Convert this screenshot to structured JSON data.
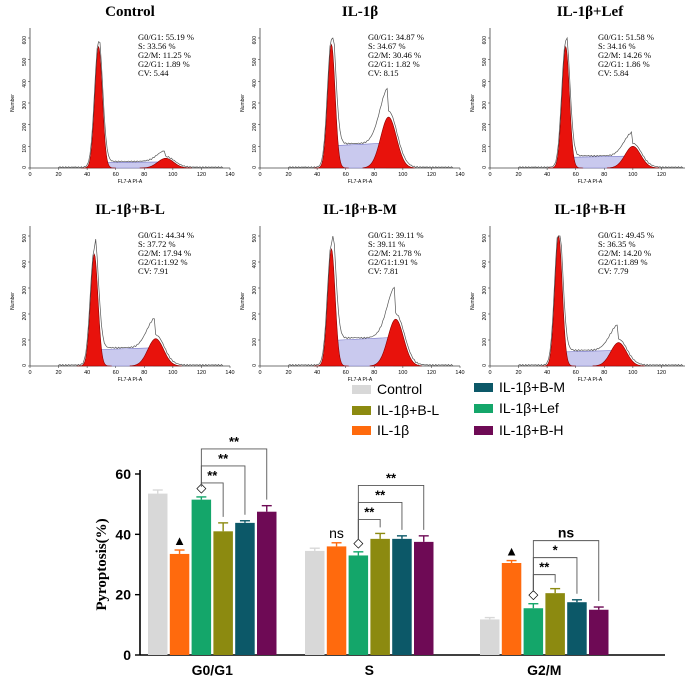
{
  "colors": {
    "peak_red": "#e8120c",
    "s_phase_fill": "#c9c9ee",
    "outline": "#555555",
    "bar_colors": [
      "#d8d8d8",
      "#ff6a0d",
      "#14a66a",
      "#8c8a10",
      "#0c5868",
      "#6e0a55"
    ]
  },
  "chart_data": [
    {
      "type": "histogram",
      "panel": "flow-cytometry-panels",
      "x_ticks": [
        "0",
        "20",
        "40",
        "60",
        "80",
        "100",
        "120",
        "140"
      ],
      "xlabel": "FL7-A PI-A",
      "ylabel": "Number",
      "panels": [
        {
          "title": "Control",
          "stats": [
            "G0/G1: 55.19 %",
            "S: 33.56 %",
            "G2/M: 11.25 %",
            "G2/G1: 1.89 %",
            "CV: 5.44"
          ],
          "y_ticks": [
            "0",
            "100",
            "200",
            "300",
            "400",
            "500",
            "600"
          ],
          "y_max": 600,
          "g1_peak": {
            "x": 48,
            "y": 560
          },
          "g2_peak": {
            "x": 95,
            "y": 45
          },
          "s_level": 28
        },
        {
          "title": "IL-1β",
          "stats": [
            "G0/G1: 34.87 %",
            "S: 34.67 %",
            "G2/M: 30.46 %",
            "G2/G1: 1.82 %",
            "CV: 8.15"
          ],
          "y_ticks": [
            "0",
            "100",
            "200",
            "300",
            "400",
            "500",
            "600"
          ],
          "y_max": 600,
          "g1_peak": {
            "x": 50,
            "y": 570
          },
          "g2_peak": {
            "x": 90,
            "y": 235
          },
          "s_level": 115
        },
        {
          "title": "IL-1β+Lef",
          "stats": [
            "G0/G1: 51.58 %",
            "S: 34.16 %",
            "G2/M: 14.26 %",
            "G2/G1: 1.86 %",
            "CV: 5.84"
          ],
          "y_ticks": [
            "0",
            "100",
            "200",
            "300",
            "400",
            "500",
            "600"
          ],
          "y_max": 600,
          "g1_peak": {
            "x": 53,
            "y": 560
          },
          "g2_peak": {
            "x": 100,
            "y": 100
          },
          "s_level": 55
        },
        {
          "title": "IL-1β+B-L",
          "stats": [
            "G0/G1: 44.34 %",
            "S: 37.72 %",
            "G2/M: 17.94 %",
            "G2/G1:1.92 %",
            "CV: 7.91"
          ],
          "y_ticks": [
            "0",
            "100",
            "200",
            "300",
            "400",
            "500"
          ],
          "y_max": 500,
          "g1_peak": {
            "x": 45,
            "y": 430
          },
          "g2_peak": {
            "x": 88,
            "y": 105
          },
          "s_level": 70
        },
        {
          "title": "IL-1β+B-M",
          "stats": [
            "G0/G1: 39.11 %",
            "S: 39.11 %",
            "G2/M: 21.78 %",
            "G2/G1:1.91 %",
            "CV: 7.81"
          ],
          "y_ticks": [
            "0",
            "100",
            "200",
            "300",
            "400",
            "500"
          ],
          "y_max": 500,
          "g1_peak": {
            "x": 50,
            "y": 450
          },
          "g2_peak": {
            "x": 95,
            "y": 180
          },
          "s_level": 110
        },
        {
          "title": "IL-1β+B-H",
          "stats": [
            "G0/G1: 49.45 %",
            "S: 36.35 %",
            "G2/M: 14.20 %",
            "G2/G1:1.89 %",
            "CV:  7.79"
          ],
          "y_ticks": [
            "0",
            "100",
            "200",
            "300",
            "400",
            "500"
          ],
          "y_max": 500,
          "g1_peak": {
            "x": 48,
            "y": 500
          },
          "g2_peak": {
            "x": 90,
            "y": 90
          },
          "s_level": 60
        }
      ]
    },
    {
      "type": "bar",
      "panel": "pyroptosis-bar-chart",
      "ylabel": "Pyroptosis(%)",
      "ylim": [
        0,
        60
      ],
      "y_ticks": [
        "0",
        "20",
        "40",
        "60"
      ],
      "categories": [
        "G0/G1",
        "S",
        "G2/M"
      ],
      "series": [
        {
          "name": "Control",
          "values": [
            53.5,
            34.5,
            11.8
          ],
          "errors": [
            1.2,
            0.9,
            0.6
          ]
        },
        {
          "name": "IL-1β",
          "values": [
            33.5,
            36.0,
            30.5
          ],
          "errors": [
            1.3,
            1.2,
            0.8
          ]
        },
        {
          "name": "IL-1β+Lef",
          "values": [
            51.5,
            33.0,
            15.5
          ],
          "errors": [
            0.9,
            1.2,
            1.5
          ]
        },
        {
          "name": "IL-1β+B-L",
          "values": [
            41.0,
            38.5,
            20.5
          ],
          "errors": [
            2.8,
            1.8,
            1.5
          ]
        },
        {
          "name": "IL-1β+B-M",
          "values": [
            43.8,
            38.5,
            17.5
          ],
          "errors": [
            0.7,
            1.0,
            0.8
          ]
        },
        {
          "name": "IL-1β+B-H",
          "values": [
            47.5,
            37.5,
            15.0
          ],
          "errors": [
            2.0,
            2.0,
            0.9
          ]
        }
      ],
      "legend": {
        "placement": "top-right",
        "order": [
          0,
          3,
          1,
          4,
          2,
          5
        ]
      },
      "annotations": {
        "triangle": "▲",
        "diamond": "◇",
        "brackets": [
          {
            "label": "**",
            "group": 0,
            "from": 2,
            "to": 3
          },
          {
            "label": "**",
            "group": 0,
            "from": 2,
            "to": 4
          },
          {
            "label": "**",
            "group": 0,
            "from": 2,
            "to": 5
          },
          {
            "label": "**",
            "group": 1,
            "from": 2,
            "to": 3
          },
          {
            "label": "**",
            "group": 1,
            "from": 2,
            "to": 4
          },
          {
            "label": "**",
            "group": 1,
            "from": 2,
            "to": 5
          },
          {
            "label": "**",
            "group": 2,
            "from": 2,
            "to": 3
          },
          {
            "label": "*",
            "group": 2,
            "from": 2,
            "to": 4
          },
          {
            "label": "ns",
            "group": 2,
            "from": 2,
            "to": 5
          }
        ],
        "marks": [
          {
            "symbol": "▲",
            "group": 0,
            "series": 1
          },
          {
            "symbol": "◇",
            "group": 0,
            "series": 2
          },
          {
            "symbol": "ns",
            "group": 1,
            "series": 1
          },
          {
            "symbol": "◇",
            "group": 1,
            "series": 2
          },
          {
            "symbol": "▲",
            "group": 2,
            "series": 1
          },
          {
            "symbol": "◇",
            "group": 2,
            "series": 2
          }
        ]
      }
    }
  ]
}
